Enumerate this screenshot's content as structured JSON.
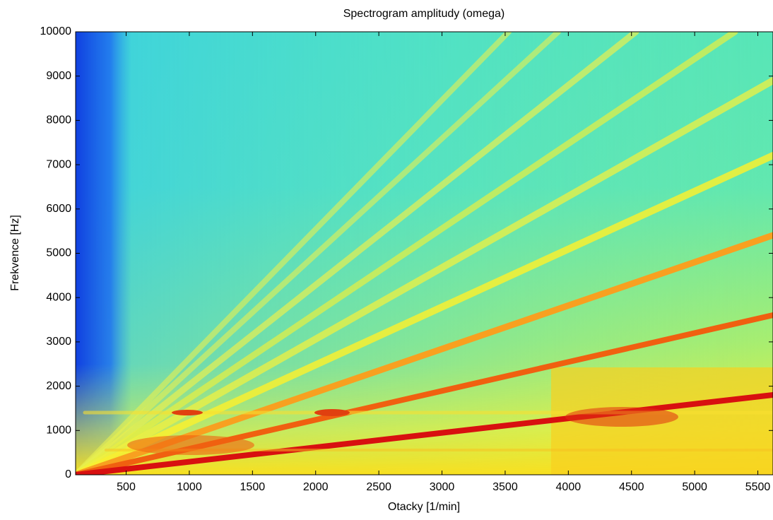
{
  "chart_data": {
    "type": "spectrogram",
    "title": "Spectrogram amplitudy (omega)",
    "x_label": "Otacky [1/min]",
    "y_label": "Frekvence [Hz]",
    "xlim": [
      100,
      5620
    ],
    "ylim": [
      0,
      10000
    ],
    "xticks": [
      500,
      1000,
      1500,
      2000,
      2500,
      3000,
      3500,
      4000,
      4500,
      5000,
      5500
    ],
    "yticks": [
      0,
      1000,
      2000,
      3000,
      4000,
      5000,
      6000,
      7000,
      8000,
      9000,
      10000
    ]
  }
}
